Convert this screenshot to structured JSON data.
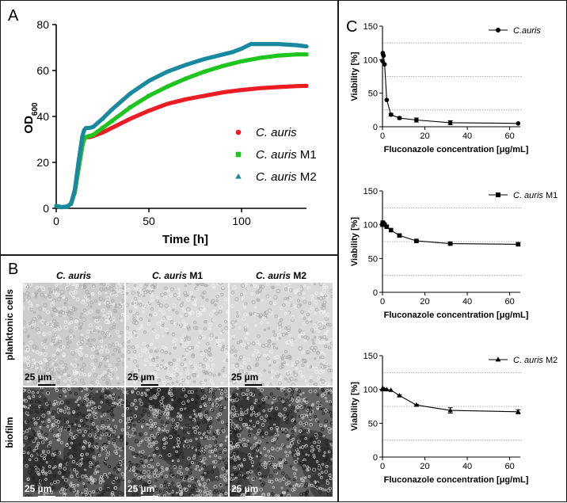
{
  "panel_labels": {
    "a": "A",
    "b": "B",
    "c": "C"
  },
  "chart_data": [
    {
      "id": "growth",
      "type": "scatter",
      "title": "",
      "xlabel": "Time [h]",
      "ylabel": "OD",
      "ylabel_sub": "600",
      "xlim": [
        0,
        135
      ],
      "ylim": [
        0,
        80
      ],
      "xticks": [
        0,
        50,
        100
      ],
      "yticks": [
        0,
        20,
        40,
        60,
        80
      ],
      "legend_position": "center-right",
      "series": [
        {
          "name_italic": "C. auris",
          "name_suffix": "",
          "marker": "circle",
          "color": "#ec1c24",
          "x": [
            0,
            3,
            6,
            8,
            10,
            12,
            14,
            15,
            16,
            18,
            20,
            25,
            30,
            40,
            50,
            60,
            70,
            80,
            90,
            100,
            110,
            120,
            130,
            135
          ],
          "y": [
            1,
            0.5,
            0.8,
            2,
            7,
            17,
            27,
            30,
            31,
            31,
            31.5,
            33,
            35,
            39,
            42.5,
            45.5,
            47.5,
            49,
            50.5,
            51.5,
            52.3,
            52.8,
            53.2,
            53.3
          ]
        },
        {
          "name_italic": "C. auris",
          "name_suffix": " M1",
          "marker": "square",
          "color": "#1ec51e",
          "x": [
            0,
            3,
            6,
            8,
            10,
            12,
            14,
            15,
            16,
            18,
            20,
            25,
            30,
            40,
            50,
            60,
            70,
            80,
            90,
            100,
            110,
            120,
            130,
            135
          ],
          "y": [
            1,
            0.5,
            0.8,
            2,
            7,
            17,
            27,
            30,
            31,
            31.5,
            32,
            35,
            38,
            44,
            49,
            53,
            56.5,
            59.5,
            62,
            64,
            65.5,
            66.5,
            67,
            67
          ]
        },
        {
          "name_italic": "C. auris",
          "name_suffix": " M2",
          "marker": "triangle",
          "color": "#19899f",
          "x": [
            0,
            3,
            6,
            8,
            10,
            12,
            14,
            15,
            16,
            18,
            20,
            25,
            30,
            40,
            50,
            60,
            70,
            80,
            90,
            95,
            100,
            105,
            110,
            120,
            130,
            135
          ],
          "y": [
            1,
            0.5,
            0.8,
            2,
            8,
            20,
            31,
            34,
            35,
            35,
            35.5,
            39,
            43,
            50,
            55.5,
            59.5,
            62.5,
            65,
            67,
            68,
            69.5,
            71.5,
            71.5,
            71.5,
            71,
            70.5
          ]
        }
      ]
    },
    {
      "id": "viab-auris",
      "type": "line",
      "title": "",
      "xlabel": "Fluconazole concentration [μg/mL]",
      "ylabel": "Viability [%]",
      "xlim": [
        0,
        65
      ],
      "ylim": [
        0,
        150
      ],
      "xticks": [
        0,
        20,
        40,
        60
      ],
      "yticks": [
        0,
        50,
        100,
        150
      ],
      "gridlines": [
        25,
        75,
        125
      ],
      "legend_italic": "C.auris",
      "legend_suffix": "",
      "marker": "circle",
      "x": [
        0,
        0.125,
        0.25,
        0.5,
        1,
        2,
        4,
        8,
        16,
        32,
        64
      ],
      "y": [
        98,
        110,
        108,
        106,
        93,
        40,
        18,
        13,
        10,
        6,
        5
      ],
      "err": [
        0,
        0,
        0,
        0,
        0,
        0,
        2,
        2,
        3,
        3,
        0
      ]
    },
    {
      "id": "viab-m1",
      "type": "line",
      "title": "",
      "xlabel": "Fluconazole concentration [μg/mL]",
      "ylabel": "Viability [%]",
      "xlim": [
        0,
        65
      ],
      "ylim": [
        0,
        150
      ],
      "xticks": [
        0,
        20,
        40,
        60
      ],
      "yticks": [
        0,
        50,
        100,
        150
      ],
      "gridlines": [
        25,
        75,
        125
      ],
      "legend_italic": "C. auris",
      "legend_suffix": " M1",
      "marker": "square",
      "x": [
        0,
        0.125,
        0.25,
        0.5,
        1,
        2,
        4,
        8,
        16,
        32,
        64
      ],
      "y": [
        100,
        103,
        102,
        101,
        100,
        97,
        92,
        84,
        76,
        72,
        71
      ],
      "err": [
        0,
        0,
        0,
        0,
        0,
        0,
        0,
        2,
        1,
        2,
        2
      ]
    },
    {
      "id": "viab-m2",
      "type": "line",
      "title": "",
      "xlabel": "Fluconazole concentration [μg/mL]",
      "ylabel": "Viability [%]",
      "xlim": [
        0,
        65
      ],
      "ylim": [
        0,
        150
      ],
      "xticks": [
        0,
        20,
        40,
        60
      ],
      "yticks": [
        0,
        50,
        100,
        150
      ],
      "gridlines": [
        25,
        75,
        125
      ],
      "legend_italic": "C. auris",
      "legend_suffix": " M2",
      "marker": "triangle",
      "x": [
        0,
        0.125,
        0.25,
        0.5,
        1,
        2,
        4,
        8,
        16,
        32,
        64
      ],
      "y": [
        100,
        102,
        101,
        100,
        100,
        100,
        99,
        91,
        77,
        69,
        67
      ],
      "err": [
        0,
        0,
        0,
        0,
        0,
        0,
        0,
        1,
        1,
        4,
        3
      ]
    }
  ],
  "micrographs": {
    "columns": [
      {
        "italic": "C.  auris",
        "suffix": ""
      },
      {
        "italic": "C.  auris",
        "suffix": " M1"
      },
      {
        "italic": "C.  auris",
        "suffix": " M2"
      }
    ],
    "rows": [
      "planktonic cells",
      "biofilm"
    ],
    "scale_label": "25 µm"
  }
}
